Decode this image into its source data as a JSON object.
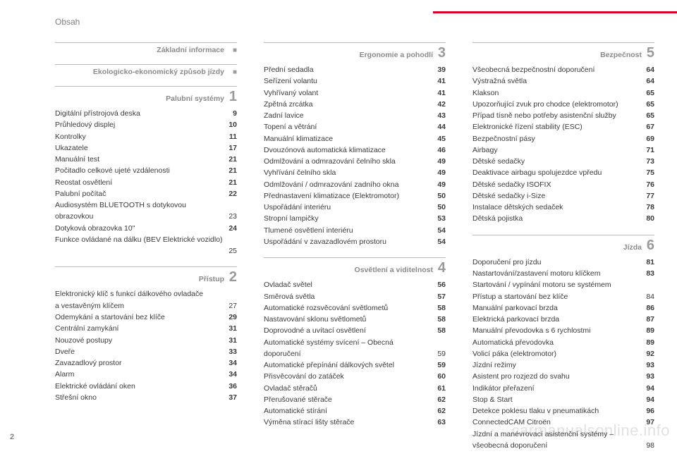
{
  "chapter_title": "Obsah",
  "page_number": "2",
  "watermark": "carmanualsonline.info",
  "columns": [
    {
      "sections": [
        {
          "title": "Základní informace",
          "index": "■",
          "index_is_square": true,
          "entries": []
        },
        {
          "title": "Ekologicko-ekonomický způsob jízdy",
          "index": "■",
          "index_is_square": true,
          "entries": []
        },
        {
          "title": "Palubní systémy",
          "index": "1",
          "entries": [
            {
              "label": "Digitální přístrojová deska",
              "page": "9"
            },
            {
              "label": "Průhledový displej",
              "page": "10"
            },
            {
              "label": "Kontrolky",
              "page": "11"
            },
            {
              "label": "Ukazatele",
              "page": "17"
            },
            {
              "label": "Manuální test",
              "page": "21"
            },
            {
              "label": "Počitadlo celkové ujeté vzdálenosti",
              "page": "21"
            },
            {
              "label": "Reostat osvětlení",
              "page": "21"
            },
            {
              "label": "Palubní počítač",
              "page": "22"
            },
            {
              "label_lines": [
                "Audiosystém BLUETOOTH s dotykovou",
                "obrazovkou"
              ],
              "page": "23"
            },
            {
              "label": "Dotyková obrazovka 10\"",
              "page": "24"
            },
            {
              "label_lines": [
                "Funkce ovládané na dálku (BEV Elektrické vozidlo)",
                ""
              ],
              "page": "25"
            }
          ]
        },
        {
          "title": "Přístup",
          "index": "2",
          "entries": [
            {
              "label_lines": [
                "Elektronický klíč s funkcí dálkového ovladače",
                "a vestavěným klíčem"
              ],
              "page": "27"
            },
            {
              "label": "Odemykání a startování bez klíče",
              "page": "29"
            },
            {
              "label": "Centrální zamykání",
              "page": "31"
            },
            {
              "label": "Nouzové postupy",
              "page": "31"
            },
            {
              "label": "Dveře",
              "page": "33"
            },
            {
              "label": "Zavazadlový prostor",
              "page": "34"
            },
            {
              "label": "Alarm",
              "page": "34"
            },
            {
              "label": "Elektrické ovládání oken",
              "page": "36"
            },
            {
              "label": "Střešní okno",
              "page": "37"
            }
          ]
        }
      ]
    },
    {
      "sections": [
        {
          "title": "Ergonomie a pohodlí",
          "index": "3",
          "entries": [
            {
              "label": "Přední sedadla",
              "page": "39"
            },
            {
              "label": "Seřízení volantu",
              "page": "41"
            },
            {
              "label": "Vyhřívaný volant",
              "page": "41"
            },
            {
              "label": "Zpětná zrcátka",
              "page": "42"
            },
            {
              "label": "Zadní lavice",
              "page": "43"
            },
            {
              "label": "Topení a větrání",
              "page": "44"
            },
            {
              "label": "Manuální klimatizace",
              "page": "45"
            },
            {
              "label": "Dvouzónová automatická klimatizace",
              "page": "46"
            },
            {
              "label": "Odmlžování a odmrazování čelního skla",
              "page": "49"
            },
            {
              "label": "Vyhřívání čelního skla",
              "page": "49"
            },
            {
              "label": "Odmlžování / odmrazování zadního okna",
              "page": "49"
            },
            {
              "label": "Přednastavení klimatizace  (Elektromotor)",
              "page": "50"
            },
            {
              "label": "Uspořádání interiéru",
              "page": "50"
            },
            {
              "label": "Stropní lampičky",
              "page": "53"
            },
            {
              "label": "Tlumené osvětlení interiéru",
              "page": "54"
            },
            {
              "label": "Uspořádání v zavazadlovém prostoru",
              "page": "54"
            }
          ]
        },
        {
          "title": "Osvětlení a viditelnost",
          "index": "4",
          "entries": [
            {
              "label": "Ovladač světel",
              "page": "56"
            },
            {
              "label": "Směrová světla",
              "page": "57"
            },
            {
              "label": "Automatické rozsvěcování světlometů",
              "page": "58"
            },
            {
              "label": "Nastavování sklonu světlometů",
              "page": "58"
            },
            {
              "label": "Doprovodné a uvítací osvětlení",
              "page": "58"
            },
            {
              "label_lines": [
                "Automatické systémy svícení – Obecná",
                "doporučení"
              ],
              "page": "59"
            },
            {
              "label": "Automatické přepínání dálkových světel",
              "page": "59"
            },
            {
              "label": "Přisvěcování do zatáček",
              "page": "60"
            },
            {
              "label": "Ovladač stěračů",
              "page": "61"
            },
            {
              "label": "Přerušované stěrače",
              "page": "62"
            },
            {
              "label": "Automatické stírání",
              "page": "62"
            },
            {
              "label": "Výměna stírací lišty stěrače",
              "page": "63"
            }
          ]
        }
      ]
    },
    {
      "sections": [
        {
          "title": "Bezpečnost",
          "index": "5",
          "entries": [
            {
              "label": "Všeobecná bezpečnostní doporučení",
              "page": "64"
            },
            {
              "label": "Výstražná světla",
              "page": "64"
            },
            {
              "label": "Klakson",
              "page": "65"
            },
            {
              "label": "Upozorňující zvuk pro chodce (elektromotor)",
              "page": "65"
            },
            {
              "label": "Případ tísně nebo potřeby asistenční služby",
              "page": "65"
            },
            {
              "label": "Elektronické řízení stability (ESC)",
              "page": "67"
            },
            {
              "label": "Bezpečnostní pásy",
              "page": "69"
            },
            {
              "label": "Airbagy",
              "page": "71"
            },
            {
              "label": "Dětské sedačky",
              "page": "73"
            },
            {
              "label": "Deaktivace airbagu spolujezdce vpředu",
              "page": "75"
            },
            {
              "label": "Dětské sedačky ISOFIX",
              "page": "76"
            },
            {
              "label": "Dětské sedačky i-Size",
              "page": "77"
            },
            {
              "label": "Instalace dětských sedaček",
              "page": "78"
            },
            {
              "label": "Dětská pojistka",
              "page": "80"
            }
          ]
        },
        {
          "title": "Jízda",
          "index": "6",
          "entries": [
            {
              "label": "Doporučení pro jízdu",
              "page": "81"
            },
            {
              "label": "Nastartování/zastavení motoru klíčkem",
              "page": "83"
            },
            {
              "label_lines": [
                "Startování / vypínání motoru se systémem",
                "Přístup a startování bez klíče"
              ],
              "page": "84"
            },
            {
              "label": "Manuální parkovací brzda",
              "page": "86"
            },
            {
              "label": "Elektrická parkovací brzda",
              "page": "87"
            },
            {
              "label": "Manuální převodovka s 6 rychlostmi",
              "page": "89"
            },
            {
              "label": "Automatická převodovka",
              "page": "89"
            },
            {
              "label": "Volicí páka (elektromotor)",
              "page": "92"
            },
            {
              "label": "Jízdní režimy",
              "page": "93"
            },
            {
              "label": "Asistent pro rozjezd do svahu",
              "page": "93"
            },
            {
              "label": "Indikátor přeřazení",
              "page": "94"
            },
            {
              "label": "Stop & Start",
              "page": "94"
            },
            {
              "label": "Detekce poklesu tlaku v pneumatikách",
              "page": "96"
            },
            {
              "label": "ConnectedCAM Citroën",
              "page": "97"
            },
            {
              "label_lines": [
                "Jízdní a manévrovací asistenční systémy –",
                "všeobecná doporučení"
              ],
              "page": "98"
            }
          ]
        }
      ]
    }
  ]
}
